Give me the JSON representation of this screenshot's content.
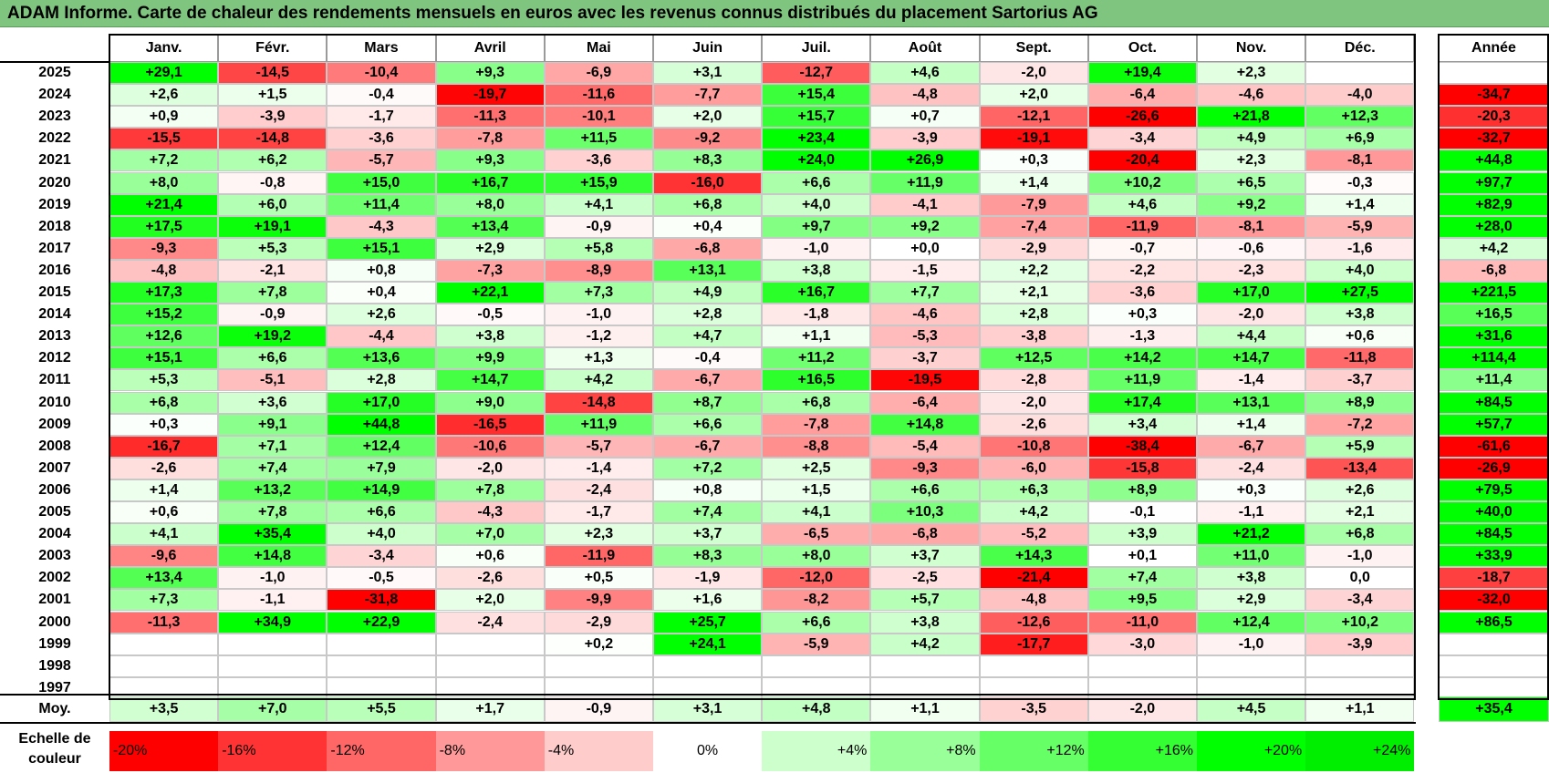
{
  "title": "ADAM Informe. Carte de chaleur des rendements mensuels en euros avec les revenus connus distribués du placement Sartorius AG",
  "chart_data": {
    "type": "heatmap",
    "title": "ADAM Informe. Carte de chaleur des rendements mensuels en euros avec les revenus connus distribués du placement Sartorius AG",
    "columns": [
      "Janv.",
      "Févr.",
      "Mars",
      "Avril",
      "Mai",
      "Juin",
      "Juil.",
      "Août",
      "Sept.",
      "Oct.",
      "Nov.",
      "Déc."
    ],
    "year_header": "Année",
    "rows": [
      {
        "year": "2025",
        "months": [
          "+29,1",
          "-14,5",
          "-10,4",
          "+9,3",
          "-6,9",
          "+3,1",
          "-12,7",
          "+4,6",
          "-2,0",
          "+19,4",
          "+2,3",
          ""
        ],
        "annual": ""
      },
      {
        "year": "2024",
        "months": [
          "+2,6",
          "+1,5",
          "-0,4",
          "-19,7",
          "-11,6",
          "-7,7",
          "+15,4",
          "-4,8",
          "+2,0",
          "-6,4",
          "-4,6",
          "-4,0"
        ],
        "annual": "-34,7"
      },
      {
        "year": "2023",
        "months": [
          "+0,9",
          "-3,9",
          "-1,7",
          "-11,3",
          "-10,1",
          "+2,0",
          "+15,7",
          "+0,7",
          "-12,1",
          "-26,6",
          "+21,8",
          "+12,3"
        ],
        "annual": "-20,3"
      },
      {
        "year": "2022",
        "months": [
          "-15,5",
          "-14,8",
          "-3,6",
          "-7,8",
          "+11,5",
          "-9,2",
          "+23,4",
          "-3,9",
          "-19,1",
          "-3,4",
          "+4,9",
          "+6,9"
        ],
        "annual": "-32,7"
      },
      {
        "year": "2021",
        "months": [
          "+7,2",
          "+6,2",
          "-5,7",
          "+9,3",
          "-3,6",
          "+8,3",
          "+24,0",
          "+26,9",
          "+0,3",
          "-20,4",
          "+2,3",
          "-8,1"
        ],
        "annual": "+44,8"
      },
      {
        "year": "2020",
        "months": [
          "+8,0",
          "-0,8",
          "+15,0",
          "+16,7",
          "+15,9",
          "-16,0",
          "+6,6",
          "+11,9",
          "+1,4",
          "+10,2",
          "+6,5",
          "-0,3"
        ],
        "annual": "+97,7"
      },
      {
        "year": "2019",
        "months": [
          "+21,4",
          "+6,0",
          "+11,4",
          "+8,0",
          "+4,1",
          "+6,8",
          "+4,0",
          "-4,1",
          "-7,9",
          "+4,6",
          "+9,2",
          "+1,4"
        ],
        "annual": "+82,9"
      },
      {
        "year": "2018",
        "months": [
          "+17,5",
          "+19,1",
          "-4,3",
          "+13,4",
          "-0,9",
          "+0,4",
          "+9,7",
          "+9,2",
          "-7,4",
          "-11,9",
          "-8,1",
          "-5,9"
        ],
        "annual": "+28,0"
      },
      {
        "year": "2017",
        "months": [
          "-9,3",
          "+5,3",
          "+15,1",
          "+2,9",
          "+5,8",
          "-6,8",
          "-1,0",
          "+0,0",
          "-2,9",
          "-0,7",
          "-0,6",
          "-1,6"
        ],
        "annual": "+4,2"
      },
      {
        "year": "2016",
        "months": [
          "-4,8",
          "-2,1",
          "+0,8",
          "-7,3",
          "-8,9",
          "+13,1",
          "+3,8",
          "-1,5",
          "+2,2",
          "-2,2",
          "-2,3",
          "+4,0"
        ],
        "annual": "-6,8"
      },
      {
        "year": "2015",
        "months": [
          "+17,3",
          "+7,8",
          "+0,4",
          "+22,1",
          "+7,3",
          "+4,9",
          "+16,7",
          "+7,7",
          "+2,1",
          "-3,6",
          "+17,0",
          "+27,5"
        ],
        "annual": "+221,5"
      },
      {
        "year": "2014",
        "months": [
          "+15,2",
          "-0,9",
          "+2,6",
          "-0,5",
          "-1,0",
          "+2,8",
          "-1,8",
          "-4,6",
          "+2,8",
          "+0,3",
          "-2,0",
          "+3,8"
        ],
        "annual": "+16,5"
      },
      {
        "year": "2013",
        "months": [
          "+12,6",
          "+19,2",
          "-4,4",
          "+3,8",
          "-1,2",
          "+4,7",
          "+1,1",
          "-5,3",
          "-3,8",
          "-1,3",
          "+4,4",
          "+0,6"
        ],
        "annual": "+31,6"
      },
      {
        "year": "2012",
        "months": [
          "+15,1",
          "+6,6",
          "+13,6",
          "+9,9",
          "+1,3",
          "-0,4",
          "+11,2",
          "-3,7",
          "+12,5",
          "+14,2",
          "+14,7",
          "-11,8"
        ],
        "annual": "+114,4"
      },
      {
        "year": "2011",
        "months": [
          "+5,3",
          "-5,1",
          "+2,8",
          "+14,7",
          "+4,2",
          "-6,7",
          "+16,5",
          "-19,5",
          "-2,8",
          "+11,9",
          "-1,4",
          "-3,7"
        ],
        "annual": "+11,4"
      },
      {
        "year": "2010",
        "months": [
          "+6,8",
          "+3,6",
          "+17,0",
          "+9,0",
          "-14,8",
          "+8,7",
          "+6,8",
          "-6,4",
          "-2,0",
          "+17,4",
          "+13,1",
          "+8,9"
        ],
        "annual": "+84,5"
      },
      {
        "year": "2009",
        "months": [
          "+0,3",
          "+9,1",
          "+44,8",
          "-16,5",
          "+11,9",
          "+6,6",
          "-7,8",
          "+14,8",
          "-2,6",
          "+3,4",
          "+1,4",
          "-7,2"
        ],
        "annual": "+57,7"
      },
      {
        "year": "2008",
        "months": [
          "-16,7",
          "+7,1",
          "+12,4",
          "-10,6",
          "-5,7",
          "-6,7",
          "-8,8",
          "-5,4",
          "-10,8",
          "-38,4",
          "-6,7",
          "+5,9"
        ],
        "annual": "-61,6"
      },
      {
        "year": "2007",
        "months": [
          "-2,6",
          "+7,4",
          "+7,9",
          "-2,0",
          "-1,4",
          "+7,2",
          "+2,5",
          "-9,3",
          "-6,0",
          "-15,8",
          "-2,4",
          "-13,4"
        ],
        "annual": "-26,9"
      },
      {
        "year": "2006",
        "months": [
          "+1,4",
          "+13,2",
          "+14,9",
          "+7,8",
          "-2,4",
          "+0,8",
          "+1,5",
          "+6,6",
          "+6,3",
          "+8,9",
          "+0,3",
          "+2,6"
        ],
        "annual": "+79,5"
      },
      {
        "year": "2005",
        "months": [
          "+0,6",
          "+7,8",
          "+6,6",
          "-4,3",
          "-1,7",
          "+7,4",
          "+4,1",
          "+10,3",
          "+4,2",
          "-0,1",
          "-1,1",
          "+2,1"
        ],
        "annual": "+40,0"
      },
      {
        "year": "2004",
        "months": [
          "+4,1",
          "+35,4",
          "+4,0",
          "+7,0",
          "+2,3",
          "+3,7",
          "-6,5",
          "-6,8",
          "-5,2",
          "+3,9",
          "+21,2",
          "+6,8"
        ],
        "annual": "+84,5"
      },
      {
        "year": "2003",
        "months": [
          "-9,6",
          "+14,8",
          "-3,4",
          "+0,6",
          "-11,9",
          "+8,3",
          "+8,0",
          "+3,7",
          "+14,3",
          "+0,1",
          "+11,0",
          "-1,0"
        ],
        "annual": "+33,9"
      },
      {
        "year": "2002",
        "months": [
          "+13,4",
          "-1,0",
          "-0,5",
          "-2,6",
          "+0,5",
          "-1,9",
          "-12,0",
          "-2,5",
          "-21,4",
          "+7,4",
          "+3,8",
          "0,0"
        ],
        "annual": "-18,7"
      },
      {
        "year": "2001",
        "months": [
          "+7,3",
          "-1,1",
          "-31,8",
          "+2,0",
          "-9,9",
          "+1,6",
          "-8,2",
          "+5,7",
          "-4,8",
          "+9,5",
          "+2,9",
          "-3,4"
        ],
        "annual": "-32,0"
      },
      {
        "year": "2000",
        "months": [
          "-11,3",
          "+34,9",
          "+22,9",
          "-2,4",
          "-2,9",
          "+25,7",
          "+6,6",
          "+3,8",
          "-12,6",
          "-11,0",
          "+12,4",
          "+10,2"
        ],
        "annual": "+86,5"
      },
      {
        "year": "1999",
        "months": [
          "",
          "",
          "",
          "",
          "+0,2",
          "+24,1",
          "-5,9",
          "+4,2",
          "-17,7",
          "-3,0",
          "-1,0",
          "-3,9"
        ],
        "annual": ""
      },
      {
        "year": "1998",
        "months": [
          "",
          "",
          "",
          "",
          "",
          "",
          "",
          "",
          "",
          "",
          "",
          ""
        ],
        "annual": ""
      },
      {
        "year": "1997",
        "months": [
          "",
          "",
          "",
          "",
          "",
          "",
          "",
          "",
          "",
          "",
          "",
          ""
        ],
        "annual": ""
      }
    ],
    "average": {
      "label": "Moy.",
      "months": [
        "+3,5",
        "+7,0",
        "+5,5",
        "+1,7",
        "-0,9",
        "+3,1",
        "+4,8",
        "+1,1",
        "-3,5",
        "-2,0",
        "+4,5",
        "+1,1"
      ],
      "annual": "+35,4"
    },
    "color_scale": {
      "label_line1": "Echelle de",
      "label_line2": "couleur",
      "steps": [
        {
          "label": "-20%",
          "value": -20,
          "color": "#ff0000"
        },
        {
          "label": "-16%",
          "value": -16,
          "color": "#ff3333"
        },
        {
          "label": "-12%",
          "value": -12,
          "color": "#ff6666"
        },
        {
          "label": "-8%",
          "value": -8,
          "color": "#ff9999"
        },
        {
          "label": "-4%",
          "value": -4,
          "color": "#ffcccc"
        },
        {
          "label": "0%",
          "value": 0,
          "color": "#ffffff"
        },
        {
          "label": "+4%",
          "value": 4,
          "color": "#ccffcc"
        },
        {
          "label": "+8%",
          "value": 8,
          "color": "#99ff99"
        },
        {
          "label": "+12%",
          "value": 12,
          "color": "#66ff66"
        },
        {
          "label": "+16%",
          "value": 16,
          "color": "#33ff33"
        },
        {
          "label": "+20%",
          "value": 20,
          "color": "#00ff00"
        },
        {
          "label": "+24%",
          "value": 24,
          "color": "#00ee00"
        }
      ]
    }
  }
}
